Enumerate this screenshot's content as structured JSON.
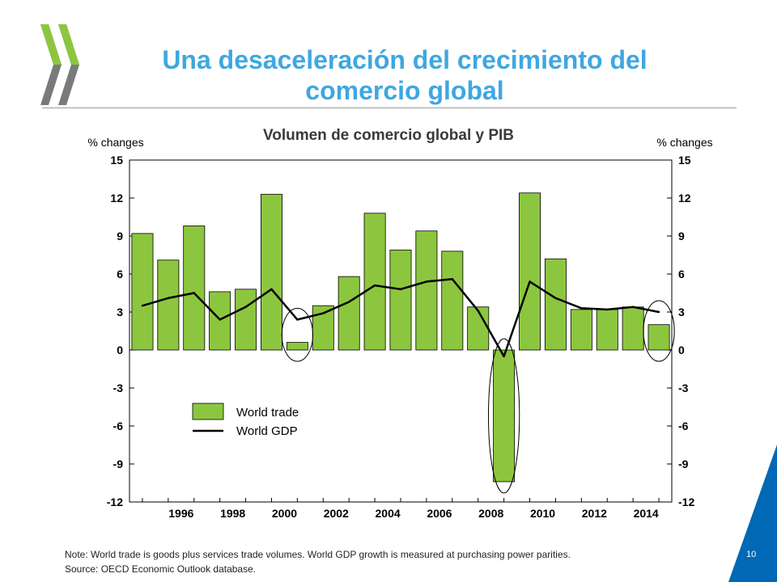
{
  "slide": {
    "title_line1": "Una desaceleración del crecimiento del",
    "title_line2": "comercio global",
    "note": "Note: World trade is goods plus services trade volumes. World GDP growth is measured at purchasing power parities.",
    "source": "Source: OECD Economic Outlook database.",
    "page_number": "10"
  },
  "colors": {
    "title": "#3fa7e0",
    "bar": "#8cc63f",
    "line": "#000000",
    "accent_corner": "#0068b4",
    "logo": "#7a7a7a"
  },
  "chart_data": {
    "type": "bar",
    "title": "Volumen de comercio global y PIB",
    "ylabel_left": "% changes",
    "ylabel_right": "% changes",
    "ylim": [
      -12,
      15
    ],
    "yticks": [
      15,
      12,
      9,
      6,
      3,
      0,
      -3,
      -6,
      -9,
      -12
    ],
    "x": [
      1995,
      1996,
      1997,
      1998,
      1999,
      2000,
      2001,
      2002,
      2003,
      2004,
      2005,
      2006,
      2007,
      2008,
      2009,
      2010,
      2011,
      2012,
      2013,
      2014,
      2015
    ],
    "xtick_labels": [
      "1996",
      "1998",
      "2000",
      "2002",
      "2004",
      "2006",
      "2008",
      "2010",
      "2012",
      "2014"
    ],
    "series": [
      {
        "name": "World trade",
        "type": "bar",
        "values": [
          9.2,
          7.1,
          9.8,
          4.6,
          4.8,
          12.3,
          0.6,
          3.5,
          5.8,
          10.8,
          7.9,
          9.4,
          7.8,
          3.4,
          -10.4,
          12.4,
          7.2,
          3.2,
          3.2,
          3.4,
          2.0
        ]
      },
      {
        "name": "World GDP",
        "type": "line",
        "values": [
          3.5,
          4.1,
          4.5,
          2.4,
          3.4,
          4.8,
          2.4,
          2.9,
          3.8,
          5.1,
          4.8,
          5.4,
          5.6,
          3.1,
          -0.5,
          5.4,
          4.1,
          3.3,
          3.2,
          3.4,
          3.0
        ]
      }
    ],
    "legend": {
      "position": "lower-left"
    },
    "highlights": [
      2001,
      2009,
      2015
    ],
    "grid": false
  }
}
